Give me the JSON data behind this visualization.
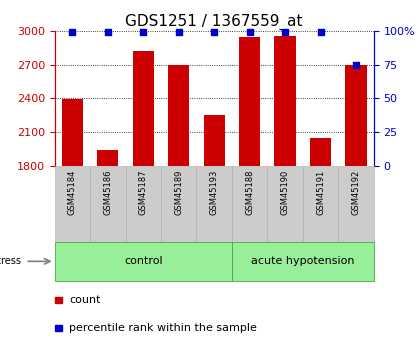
{
  "title": "GDS1251 / 1367559_at",
  "samples": [
    "GSM45184",
    "GSM45186",
    "GSM45187",
    "GSM45189",
    "GSM45193",
    "GSM45188",
    "GSM45190",
    "GSM45191",
    "GSM45192"
  ],
  "counts": [
    2390,
    1940,
    2820,
    2700,
    2250,
    2950,
    2960,
    2050,
    2700
  ],
  "percentile_ranks": [
    99,
    99,
    99,
    99,
    99,
    99,
    99,
    99,
    75
  ],
  "groups": [
    {
      "label": "control",
      "start": 0,
      "end": 4
    },
    {
      "label": "acute hypotension",
      "start": 5,
      "end": 8
    }
  ],
  "ylim_left": [
    1800,
    3000
  ],
  "ylim_right": [
    0,
    100
  ],
  "yticks_left": [
    1800,
    2100,
    2400,
    2700,
    3000
  ],
  "yticks_right": [
    0,
    25,
    50,
    75,
    100
  ],
  "ytick_right_labels": [
    "0",
    "25",
    "50",
    "75",
    "100%"
  ],
  "bar_color": "#cc0000",
  "dot_color": "#0000cc",
  "group_bg_color": "#99ee99",
  "group_edge_color": "#44aa44",
  "sample_bg_color": "#cccccc",
  "sample_edge_color": "#aaaaaa",
  "bar_width": 0.6,
  "title_fontsize": 11,
  "tick_fontsize": 8,
  "sample_fontsize": 6,
  "group_fontsize": 8,
  "legend_fontsize": 8,
  "stress_label": "stress",
  "legend_count_label": "count",
  "legend_percentile_label": "percentile rank within the sample",
  "fig_width": 4.2,
  "fig_height": 3.45,
  "dpi": 100
}
